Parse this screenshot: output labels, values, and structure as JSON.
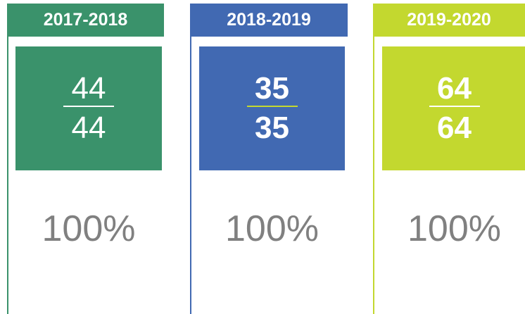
{
  "cards": [
    {
      "year": "2017-2018",
      "numerator": 44,
      "denominator": 44,
      "percent": "100%",
      "color": "#3a926b",
      "bold": false,
      "rule": "#ffffff"
    },
    {
      "year": "2018-2019",
      "numerator": 35,
      "denominator": 35,
      "percent": "100%",
      "color": "#4169b2",
      "bold": true,
      "rule": "#c3d82f"
    },
    {
      "year": "2019-2020",
      "numerator": 64,
      "denominator": 64,
      "percent": "100%",
      "color": "#c3d82f",
      "bold": true,
      "rule": "#ffffff"
    }
  ]
}
